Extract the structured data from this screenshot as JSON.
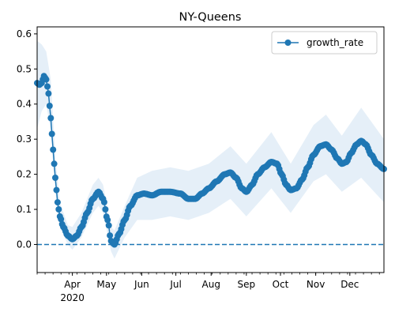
{
  "chart_data": {
    "type": "line",
    "title": "NY-Queens",
    "xlabel": "",
    "ylabel": "",
    "x_axis": {
      "type": "date",
      "range": [
        "2020-03-01",
        "2020-12-31"
      ],
      "major_ticks": [
        {
          "date": "2020-04-01",
          "label": "Apr",
          "sublabel": "2020"
        },
        {
          "date": "2020-05-01",
          "label": "May"
        },
        {
          "date": "2020-06-01",
          "label": "Jun"
        },
        {
          "date": "2020-07-01",
          "label": "Jul"
        },
        {
          "date": "2020-08-01",
          "label": "Aug"
        },
        {
          "date": "2020-09-01",
          "label": "Sep"
        },
        {
          "date": "2020-10-01",
          "label": "Oct"
        },
        {
          "date": "2020-11-01",
          "label": "Nov"
        },
        {
          "date": "2020-12-01",
          "label": "Dec"
        }
      ],
      "minor_ticks": "weekly"
    },
    "ylim": [
      -0.08,
      0.62
    ],
    "yticks": [
      0.0,
      0.1,
      0.2,
      0.3,
      0.4,
      0.5,
      0.6
    ],
    "grid": false,
    "legend": {
      "position": "top-right"
    },
    "reference_line": {
      "y": 0.0,
      "style": "dashed",
      "color": "#1f77b4"
    },
    "colors": {
      "series": "#1f77b4",
      "band": "#dce9f6"
    },
    "series": [
      {
        "name": "growth_rate",
        "marker": "circle",
        "anchors": [
          [
            "2020-03-01",
            0.46
          ],
          [
            "2020-03-03",
            0.455
          ],
          [
            "2020-03-05",
            0.46
          ],
          [
            "2020-03-07",
            0.48
          ],
          [
            "2020-03-09",
            0.47
          ],
          [
            "2020-03-11",
            0.43
          ],
          [
            "2020-03-13",
            0.36
          ],
          [
            "2020-03-15",
            0.27
          ],
          [
            "2020-03-17",
            0.19
          ],
          [
            "2020-03-19",
            0.12
          ],
          [
            "2020-03-21",
            0.08
          ],
          [
            "2020-03-24",
            0.05
          ],
          [
            "2020-03-28",
            0.025
          ],
          [
            "2020-04-01",
            0.015
          ],
          [
            "2020-04-05",
            0.025
          ],
          [
            "2020-04-09",
            0.05
          ],
          [
            "2020-04-14",
            0.09
          ],
          [
            "2020-04-19",
            0.13
          ],
          [
            "2020-04-24",
            0.15
          ],
          [
            "2020-04-28",
            0.13
          ],
          [
            "2020-05-02",
            0.07
          ],
          [
            "2020-05-05",
            0.01
          ],
          [
            "2020-05-08",
            0.0
          ],
          [
            "2020-05-12",
            0.03
          ],
          [
            "2020-05-17",
            0.07
          ],
          [
            "2020-05-22",
            0.11
          ],
          [
            "2020-05-28",
            0.14
          ],
          [
            "2020-06-03",
            0.145
          ],
          [
            "2020-06-10",
            0.14
          ],
          [
            "2020-06-18",
            0.15
          ],
          [
            "2020-06-26",
            0.15
          ],
          [
            "2020-07-05",
            0.145
          ],
          [
            "2020-07-12",
            0.13
          ],
          [
            "2020-07-18",
            0.13
          ],
          [
            "2020-07-24",
            0.145
          ],
          [
            "2020-07-30",
            0.16
          ],
          [
            "2020-08-06",
            0.18
          ],
          [
            "2020-08-13",
            0.2
          ],
          [
            "2020-08-18",
            0.205
          ],
          [
            "2020-08-23",
            0.19
          ],
          [
            "2020-08-28",
            0.16
          ],
          [
            "2020-09-01",
            0.15
          ],
          [
            "2020-09-06",
            0.17
          ],
          [
            "2020-09-11",
            0.2
          ],
          [
            "2020-09-17",
            0.22
          ],
          [
            "2020-09-23",
            0.235
          ],
          [
            "2020-09-28",
            0.23
          ],
          [
            "2020-10-02",
            0.2
          ],
          [
            "2020-10-06",
            0.17
          ],
          [
            "2020-10-10",
            0.155
          ],
          [
            "2020-10-15",
            0.16
          ],
          [
            "2020-10-20",
            0.185
          ],
          [
            "2020-10-25",
            0.22
          ],
          [
            "2020-10-30",
            0.255
          ],
          [
            "2020-11-05",
            0.28
          ],
          [
            "2020-11-10",
            0.285
          ],
          [
            "2020-11-15",
            0.27
          ],
          [
            "2020-11-20",
            0.245
          ],
          [
            "2020-11-24",
            0.23
          ],
          [
            "2020-11-28",
            0.235
          ],
          [
            "2020-12-02",
            0.26
          ],
          [
            "2020-12-07",
            0.285
          ],
          [
            "2020-12-11",
            0.295
          ],
          [
            "2020-12-15",
            0.285
          ],
          [
            "2020-12-20",
            0.255
          ],
          [
            "2020-12-25",
            0.23
          ],
          [
            "2020-12-31",
            0.215
          ]
        ],
        "band": [
          [
            "2020-03-01",
            0.33,
            0.58
          ],
          [
            "2020-03-05",
            0.38,
            0.57
          ],
          [
            "2020-03-09",
            0.4,
            0.55
          ],
          [
            "2020-03-13",
            0.32,
            0.47
          ],
          [
            "2020-03-17",
            0.15,
            0.25
          ],
          [
            "2020-03-21",
            0.05,
            0.12
          ],
          [
            "2020-03-28",
            0.0,
            0.055
          ],
          [
            "2020-04-01",
            -0.015,
            0.05
          ],
          [
            "2020-04-09",
            0.02,
            0.09
          ],
          [
            "2020-04-19",
            0.09,
            0.17
          ],
          [
            "2020-04-24",
            0.11,
            0.19
          ],
          [
            "2020-04-28",
            0.09,
            0.17
          ],
          [
            "2020-05-05",
            -0.02,
            0.05
          ],
          [
            "2020-05-08",
            -0.04,
            0.04
          ],
          [
            "2020-05-17",
            0.02,
            0.11
          ],
          [
            "2020-05-28",
            0.07,
            0.19
          ],
          [
            "2020-06-10",
            0.07,
            0.21
          ],
          [
            "2020-06-26",
            0.08,
            0.22
          ],
          [
            "2020-07-12",
            0.07,
            0.21
          ],
          [
            "2020-07-30",
            0.09,
            0.23
          ],
          [
            "2020-08-18",
            0.13,
            0.28
          ],
          [
            "2020-09-01",
            0.08,
            0.23
          ],
          [
            "2020-09-23",
            0.16,
            0.32
          ],
          [
            "2020-10-10",
            0.09,
            0.23
          ],
          [
            "2020-10-30",
            0.18,
            0.34
          ],
          [
            "2020-11-10",
            0.2,
            0.37
          ],
          [
            "2020-11-24",
            0.15,
            0.31
          ],
          [
            "2020-12-11",
            0.19,
            0.39
          ],
          [
            "2020-12-31",
            0.12,
            0.3
          ]
        ]
      }
    ]
  }
}
